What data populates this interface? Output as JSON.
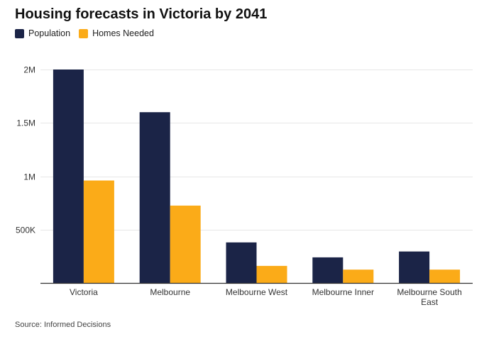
{
  "title": "Housing forecasts in Victoria by 2041",
  "source": "Source: Informed Decisions",
  "colors": {
    "population": "#1b2447",
    "homes": "#fbab18",
    "grid": "#e6e6e6",
    "axis": "#333333"
  },
  "chart_data": {
    "type": "bar",
    "title": "Housing forecasts in Victoria by 2041",
    "categories": [
      "Victoria",
      "Melbourne",
      "Melbourne West",
      "Melbourne Inner",
      "Melbourne South East"
    ],
    "category_lines": [
      [
        "Victoria"
      ],
      [
        "Melbourne"
      ],
      [
        "Melbourne West"
      ],
      [
        "Melbourne Inner"
      ],
      [
        "Melbourne South",
        "East"
      ]
    ],
    "series": [
      {
        "name": "Population",
        "color": "#1b2447",
        "values": [
          2000000,
          1600000,
          380000,
          240000,
          295000
        ]
      },
      {
        "name": "Homes Needed",
        "color": "#fbab18",
        "values": [
          960000,
          725000,
          160000,
          125000,
          125000
        ]
      }
    ],
    "ylim": [
      0,
      2000000
    ],
    "yticks": [
      500000,
      1000000,
      1500000,
      2000000
    ],
    "ytick_labels": [
      "500K",
      "1M",
      "1.5M",
      "2M"
    ],
    "grid": true,
    "legend": "top-left"
  }
}
